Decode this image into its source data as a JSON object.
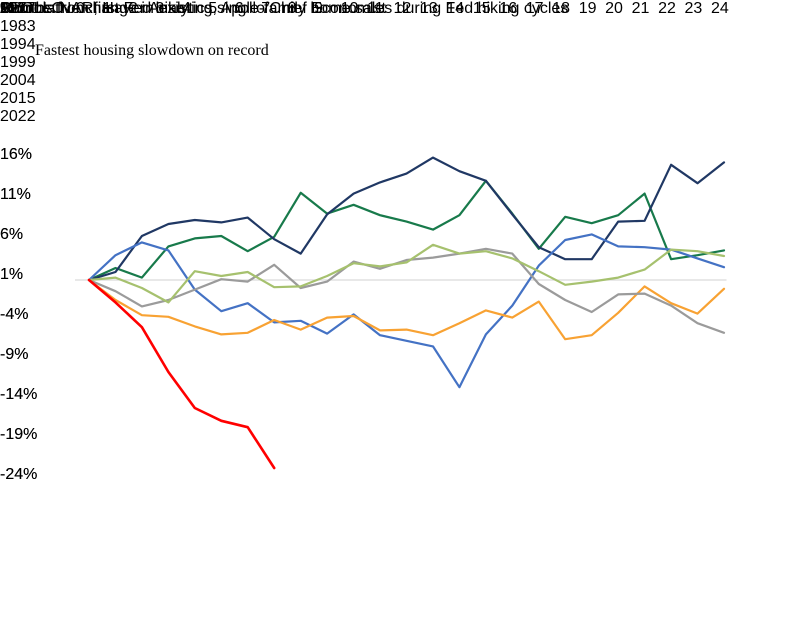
{
  "page": {
    "title": "Fastest housing slowdown on record",
    "source_line": "Source: NAR, Haver Analytics, Apollo Chief Economist",
    "logo_text": "APOLLO",
    "page_number": "221"
  },
  "chart_data": {
    "type": "line",
    "title": "Cumulative change in existing single-family home sales during Fed hiking cycles",
    "xlabel": "Months from first Fed hike",
    "ylabel_left": "%",
    "ylabel_right": "%",
    "grid": "zero-line-only",
    "legend_position": "inside-bottom",
    "x": [
      0,
      1,
      2,
      3,
      4,
      5,
      6,
      7,
      8,
      9,
      10,
      11,
      12,
      13,
      14,
      15,
      16,
      17,
      18,
      19,
      20,
      21,
      22,
      23,
      24
    ],
    "yticks": [
      16,
      11,
      6,
      1,
      -4,
      -9,
      -14,
      -19,
      -24
    ],
    "ylim": [
      -26,
      18
    ],
    "zero_line_color": "#d9d9d9",
    "series": [
      {
        "name": "1977",
        "color": "#187a4b",
        "values": [
          0,
          1.5,
          0.3,
          4.2,
          5.2,
          5.5,
          3.6,
          5.4,
          10.9,
          8.3,
          9.4,
          8.1,
          7.3,
          6.3,
          8.1,
          12.4,
          8.3,
          3.9,
          7.9,
          7.1,
          8.1,
          10.8,
          2.6,
          3.1,
          3.7
        ]
      },
      {
        "name": "1983",
        "color": "#203864",
        "values": [
          0,
          1.0,
          5.5,
          7.0,
          7.5,
          7.2,
          7.8,
          5.1,
          3.3,
          8.2,
          10.8,
          12.2,
          13.3,
          15.3,
          13.6,
          12.4,
          8.2,
          4.1,
          2.6,
          2.6,
          7.3,
          7.4,
          14.4,
          12.1,
          14.7
        ]
      },
      {
        "name": "1994",
        "color": "#4472c4",
        "values": [
          0,
          3.1,
          4.7,
          3.7,
          -1.2,
          -3.9,
          -2.9,
          -5.3,
          -5.1,
          -6.7,
          -4.3,
          -6.9,
          -7.6,
          -8.3,
          -13.4,
          -6.8,
          -3.2,
          1.8,
          5.0,
          5.7,
          4.2,
          4.1,
          3.8,
          2.7,
          1.6
        ]
      },
      {
        "name": "1999",
        "color": "#f8a233",
        "values": [
          0,
          -2.5,
          -4.4,
          -4.6,
          -5.8,
          -6.8,
          -6.6,
          -5.0,
          -6.2,
          -4.7,
          -4.5,
          -6.3,
          -6.2,
          -6.9,
          -5.4,
          -3.8,
          -4.7,
          -2.7,
          -7.4,
          -6.9,
          -4.1,
          -0.8,
          -2.9,
          -4.2,
          -1.1
        ]
      },
      {
        "name": "2004",
        "color": "#9b9b9b",
        "values": [
          0,
          -1.4,
          -3.3,
          -2.5,
          -1.2,
          0.1,
          -0.2,
          1.9,
          -1.0,
          -0.2,
          2.3,
          1.4,
          2.5,
          2.8,
          3.3,
          3.9,
          3.3,
          -0.5,
          -2.5,
          -4.0,
          -1.8,
          -1.7,
          -3.2,
          -5.4,
          -6.6
        ]
      },
      {
        "name": "2015",
        "color": "#a6c16e",
        "values": [
          0,
          0.3,
          -1.0,
          -2.8,
          1.1,
          0.5,
          1.0,
          -0.9,
          -0.8,
          0.5,
          2.1,
          1.7,
          2.2,
          4.4,
          3.3,
          3.6,
          2.7,
          1.1,
          -0.6,
          -0.2,
          0.3,
          1.3,
          3.8,
          3.6,
          3.0
        ]
      },
      {
        "name": "2022",
        "color": "#ff0000",
        "values": [
          0,
          -2.8,
          -5.9,
          -11.5,
          -16.0,
          -17.6,
          -18.4,
          -23.5
        ]
      }
    ]
  }
}
